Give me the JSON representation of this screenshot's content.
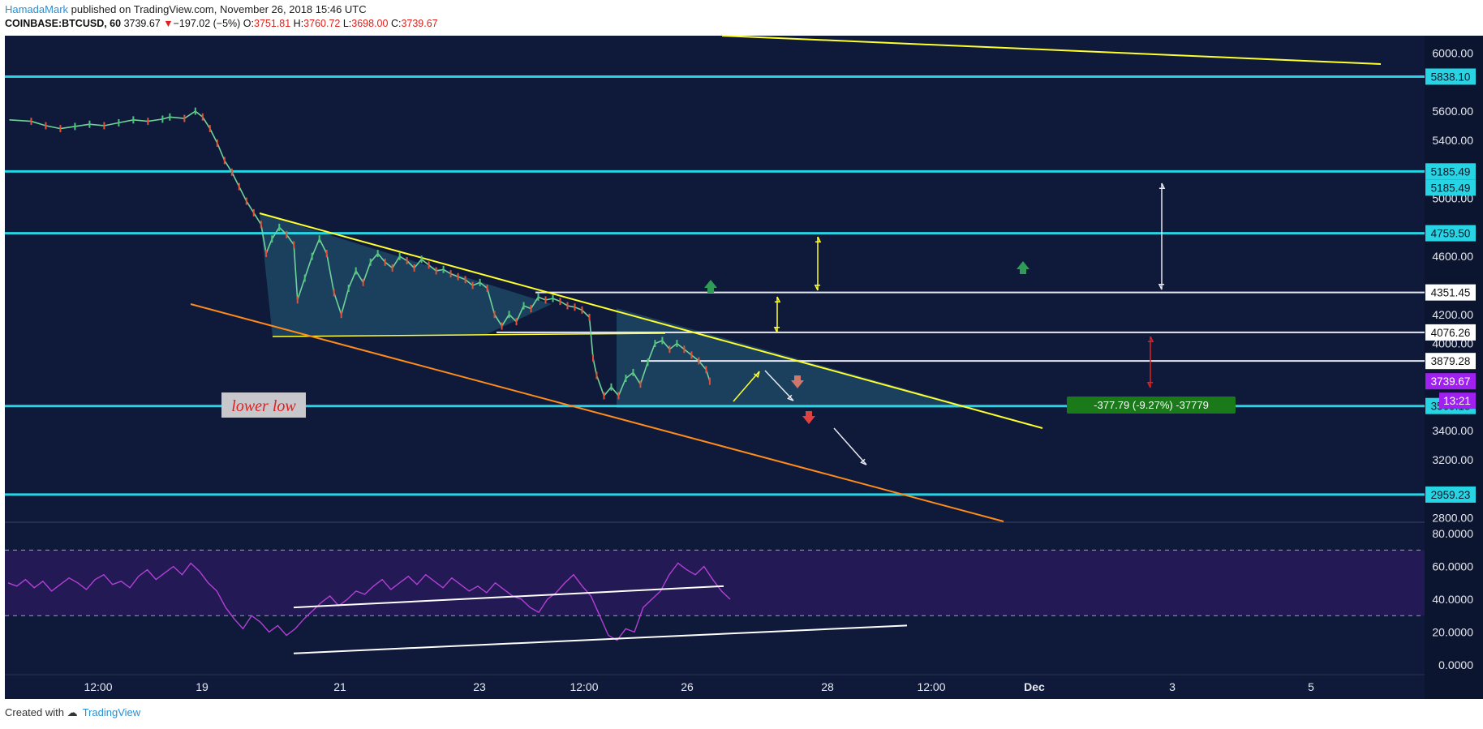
{
  "header": {
    "author": "HamadaMark",
    "published": "published on TradingView.com, November 26, 2018 15:46 UTC",
    "symbol": "COINBASE:BTCUSD, 60",
    "last": "3739.67",
    "change_arrow": "▼",
    "change": "−197.02 (−5%)",
    "o_label": "O:",
    "o": "3751.81",
    "h_label": "H:",
    "h": "3760.72",
    "l_label": "L:",
    "l": "3698.00",
    "c_label": "C:",
    "c": "3739.67"
  },
  "footer": {
    "created_with": "Created with",
    "brand": "TradingView"
  },
  "colors": {
    "background": "#0f1a3a",
    "level_cyan": "#26d4e4",
    "trend_yellow": "#ffff2e",
    "channel_orange": "#ff8c1a",
    "rsi": "#b43fd6",
    "rsi_band": "#231a55",
    "label_purple": "#a020f0",
    "label_green": "#1a7a1a"
  },
  "chart_data": [
    {
      "type": "line",
      "title": "",
      "ylim": [
        2780,
        6120
      ],
      "x_tick_labels": [
        "12:00",
        "19",
        "21",
        "23",
        "12:00",
        "26",
        "28",
        "12:00",
        "Dec",
        "3",
        "5"
      ],
      "y_tick_labels": [
        "6000.00",
        "5600.00",
        "5400.00",
        "5000.00",
        "4600.00",
        "4200.00",
        "4000.00",
        "3400.00",
        "3200.00",
        "2800.00"
      ],
      "y_ticks": [
        6000,
        5600,
        5400,
        5000,
        4600,
        4200,
        4000,
        3400,
        3200,
        2800
      ],
      "horizontal_levels": [
        {
          "value": 5838.1,
          "label": "5838.10"
        },
        {
          "value": 5185.49,
          "label": "5185.49"
        },
        {
          "value": 4759.5,
          "label": "4759.50"
        },
        {
          "value": 3569.18,
          "label": "3569.18"
        },
        {
          "value": 2959.23,
          "label": "2959.23"
        }
      ],
      "white_levels": [
        {
          "value": 4351.45,
          "label": "4351.45"
        },
        {
          "value": 4076.26,
          "label": "4076.26"
        },
        {
          "value": 3879.28,
          "label": "3879.28"
        }
      ],
      "extra_axis_labels": [
        {
          "value": 5185.49,
          "label": "5185.49"
        }
      ],
      "last_price": {
        "value": 3739.67,
        "label": "3739.67",
        "countdown": "13:21"
      },
      "annotations": {
        "lower_low": "lower low",
        "measure": "-377.79 (-9.27%) -37779"
      },
      "price_path": [
        [
          0.0,
          5540
        ],
        [
          0.03,
          5530
        ],
        [
          0.05,
          5500
        ],
        [
          0.07,
          5480
        ],
        [
          0.09,
          5495
        ],
        [
          0.11,
          5510
        ],
        [
          0.13,
          5500
        ],
        [
          0.15,
          5520
        ],
        [
          0.17,
          5540
        ],
        [
          0.19,
          5530
        ],
        [
          0.21,
          5545
        ],
        [
          0.22,
          5560
        ],
        [
          0.24,
          5550
        ],
        [
          0.255,
          5600
        ],
        [
          0.265,
          5560
        ],
        [
          0.275,
          5480
        ],
        [
          0.285,
          5380
        ],
        [
          0.295,
          5260
        ],
        [
          0.305,
          5180
        ],
        [
          0.315,
          5080
        ],
        [
          0.325,
          4980
        ],
        [
          0.335,
          4900
        ],
        [
          0.345,
          4820
        ],
        [
          0.352,
          4620
        ],
        [
          0.36,
          4720
        ],
        [
          0.37,
          4800
        ],
        [
          0.38,
          4750
        ],
        [
          0.39,
          4680
        ],
        [
          0.395,
          4300
        ],
        [
          0.405,
          4450
        ],
        [
          0.415,
          4600
        ],
        [
          0.425,
          4720
        ],
        [
          0.435,
          4620
        ],
        [
          0.445,
          4350
        ],
        [
          0.455,
          4200
        ],
        [
          0.465,
          4380
        ],
        [
          0.475,
          4500
        ],
        [
          0.485,
          4420
        ],
        [
          0.495,
          4560
        ],
        [
          0.505,
          4620
        ],
        [
          0.515,
          4560
        ],
        [
          0.525,
          4520
        ],
        [
          0.535,
          4600
        ],
        [
          0.545,
          4570
        ],
        [
          0.555,
          4520
        ],
        [
          0.565,
          4580
        ],
        [
          0.575,
          4540
        ],
        [
          0.585,
          4500
        ],
        [
          0.595,
          4510
        ],
        [
          0.605,
          4480
        ],
        [
          0.615,
          4460
        ],
        [
          0.625,
          4440
        ],
        [
          0.635,
          4400
        ],
        [
          0.645,
          4420
        ],
        [
          0.655,
          4380
        ],
        [
          0.665,
          4200
        ],
        [
          0.675,
          4120
        ],
        [
          0.685,
          4200
        ],
        [
          0.695,
          4150
        ],
        [
          0.705,
          4260
        ],
        [
          0.715,
          4240
        ],
        [
          0.725,
          4320
        ],
        [
          0.735,
          4300
        ],
        [
          0.745,
          4310
        ],
        [
          0.755,
          4290
        ],
        [
          0.765,
          4260
        ],
        [
          0.775,
          4250
        ],
        [
          0.785,
          4230
        ],
        [
          0.795,
          4180
        ],
        [
          0.8,
          3900
        ],
        [
          0.805,
          3780
        ],
        [
          0.815,
          3640
        ],
        [
          0.825,
          3700
        ],
        [
          0.835,
          3640
        ],
        [
          0.845,
          3760
        ],
        [
          0.855,
          3800
        ],
        [
          0.865,
          3720
        ],
        [
          0.875,
          3870
        ],
        [
          0.885,
          4000
        ],
        [
          0.895,
          4020
        ],
        [
          0.905,
          3960
        ],
        [
          0.915,
          4000
        ],
        [
          0.925,
          3960
        ],
        [
          0.935,
          3920
        ],
        [
          0.945,
          3880
        ],
        [
          0.955,
          3820
        ],
        [
          0.96,
          3740
        ]
      ],
      "price_x_span": [
        0.003,
        0.495
      ],
      "rsi": {
        "ylim": [
          -5,
          85
        ],
        "y_tick_labels": [
          "80.0000",
          "60.0000",
          "40.0000",
          "20.0000",
          "0.0000"
        ],
        "y_ticks": [
          80,
          60,
          40,
          20,
          0
        ],
        "bands": [
          70,
          30
        ],
        "values": [
          50,
          48,
          52,
          47,
          51,
          45,
          49,
          53,
          50,
          46,
          52,
          55,
          49,
          51,
          47,
          54,
          58,
          52,
          56,
          60,
          55,
          62,
          57,
          50,
          45,
          35,
          28,
          22,
          30,
          26,
          20,
          24,
          18,
          22,
          28,
          33,
          38,
          42,
          36,
          40,
          45,
          43,
          48,
          52,
          46,
          50,
          54,
          49,
          55,
          51,
          47,
          53,
          49,
          45,
          48,
          44,
          50,
          46,
          42,
          40,
          35,
          32,
          40,
          44,
          50,
          55,
          48,
          42,
          30,
          18,
          15,
          22,
          20,
          35,
          40,
          45,
          55,
          62,
          58,
          55,
          60,
          52,
          45,
          40
        ]
      }
    }
  ]
}
